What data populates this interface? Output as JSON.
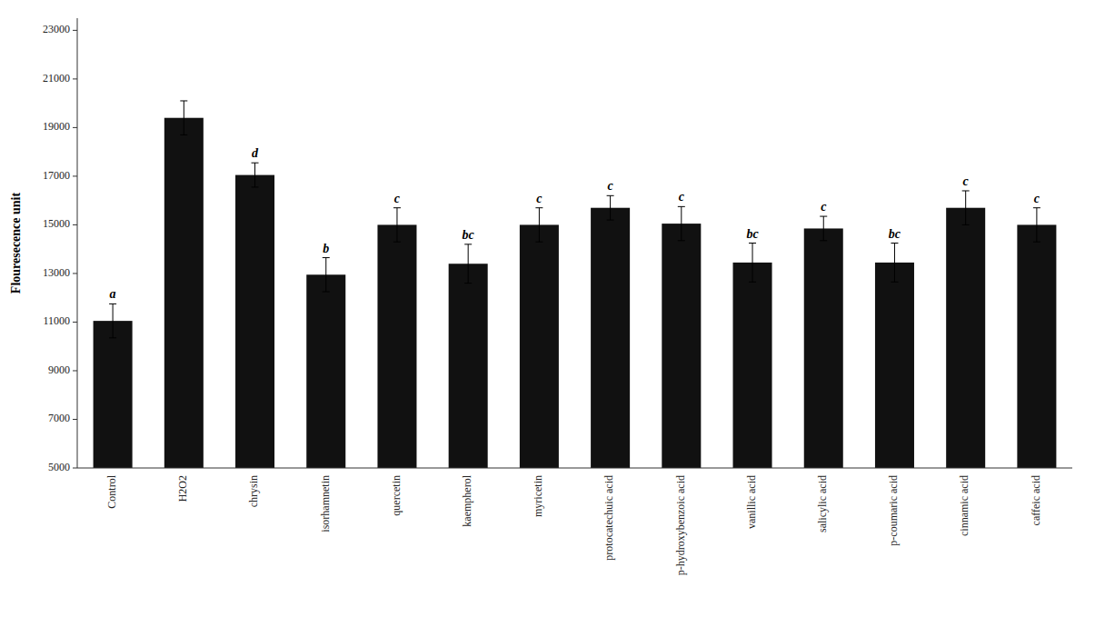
{
  "chart_data": {
    "type": "bar",
    "categories": [
      "Control",
      "H2O2",
      "chrysin",
      "isorhamnetin",
      "quercetin",
      "kaempherol",
      "myricetin",
      "protocatechuic acid",
      "p-hydroxybenzoic acid",
      "vanillic acid",
      "salicylic acid",
      "p-coumaric acid",
      "cinnamic acid",
      "caffeic acid"
    ],
    "values": [
      11050,
      19400,
      17050,
      12950,
      15000,
      13400,
      15000,
      15700,
      15050,
      13450,
      14850,
      13450,
      15700,
      15000
    ],
    "errors": [
      700,
      700,
      500,
      700,
      700,
      800,
      700,
      500,
      700,
      800,
      500,
      800,
      700,
      700
    ],
    "labels": [
      "a",
      null,
      "d",
      "b",
      "c",
      "bc",
      "c",
      "c",
      "c",
      "bc",
      "c",
      "bc",
      "c",
      "c"
    ],
    "color": "#111111",
    "ylabel": "Flouresecence unit",
    "ylim": [
      5000,
      23500
    ],
    "yticks": [
      5000,
      7000,
      9000,
      11000,
      13000,
      15000,
      17000,
      19000,
      21000,
      23000
    ],
    "grid": false
  }
}
